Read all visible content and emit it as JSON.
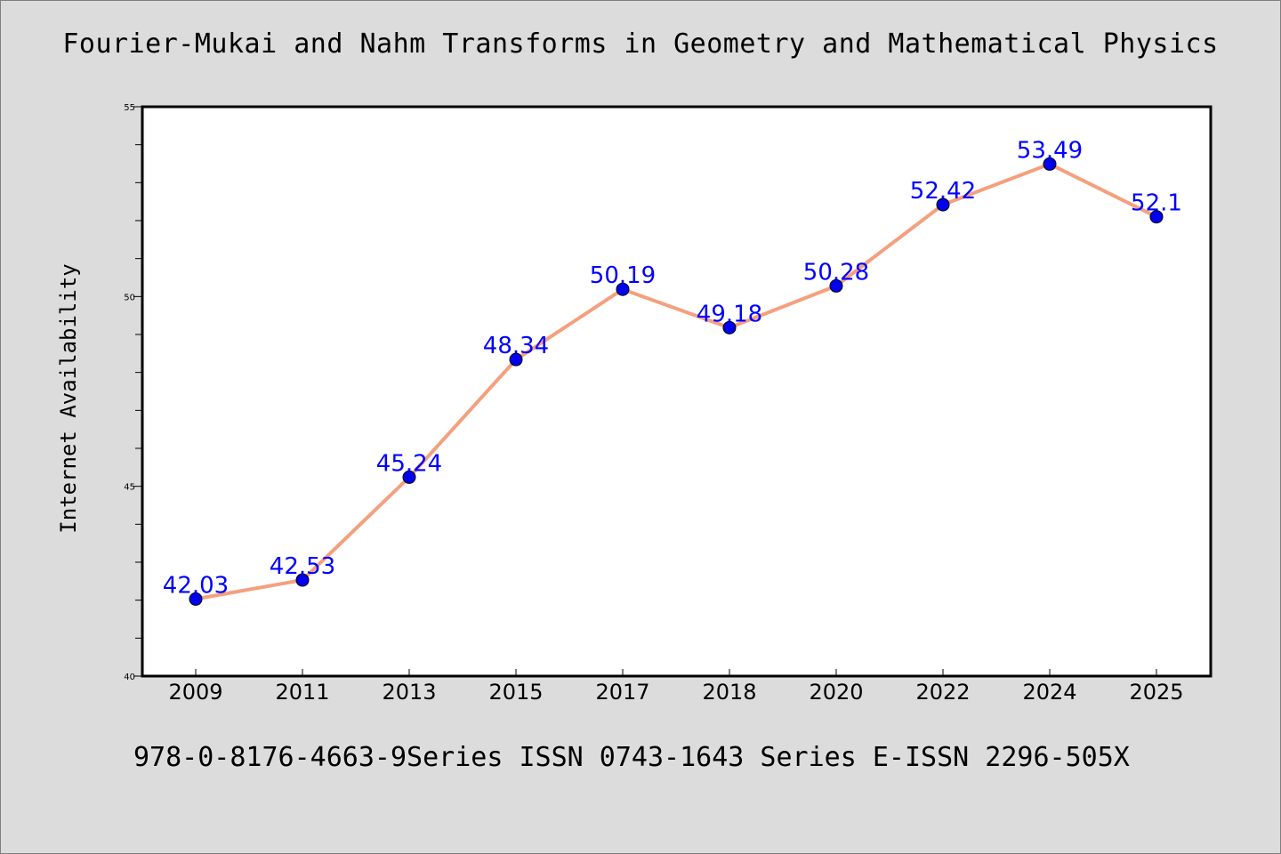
{
  "chart_data": {
    "type": "line",
    "title": "Fourier-Mukai and Nahm Transforms in Geometry and Mathematical Physics",
    "xlabel": "",
    "ylabel": "Internet Availability",
    "categories": [
      "2009",
      "2011",
      "2013",
      "2015",
      "2017",
      "2018",
      "2020",
      "2022",
      "2024",
      "2025"
    ],
    "series": [
      {
        "values": [
          42.03,
          42.53,
          45.24,
          48.34,
          50.19,
          49.18,
          50.28,
          52.42,
          53.49,
          52.1
        ],
        "data_labels": [
          "42.03",
          "42.53",
          "45.24",
          "48.34",
          "50.19",
          "49.18",
          "50.28",
          "52.42",
          "53.49",
          "52.1"
        ],
        "line_color": "#f4a07e",
        "marker_color": "#0000ee"
      }
    ],
    "ylim": [
      40,
      55
    ],
    "y_ticks": [
      "40",
      "45",
      "50",
      "55"
    ],
    "y_minor_tick_step": 1,
    "grid": false,
    "label_color": "#0000ff"
  },
  "footer": "978-0-8176-4663-9Series ISSN 0743-1643 Series E-ISSN 2296-505X"
}
